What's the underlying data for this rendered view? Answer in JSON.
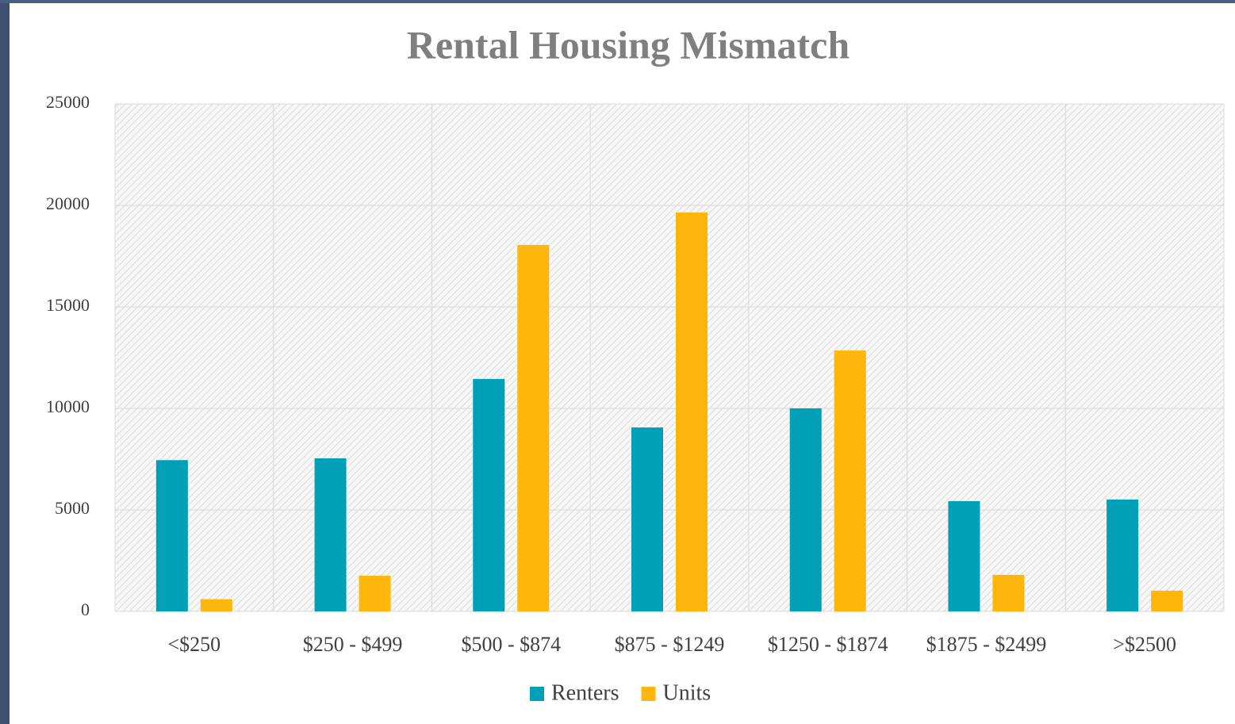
{
  "chart_data": {
    "type": "bar",
    "title": "Rental Housing Mismatch",
    "categories": [
      "<$250",
      "$250 - $499",
      "$500 - $874",
      "$875 - $1249",
      "$1250 - $1874",
      "$1875 - $2499",
      ">$2500"
    ],
    "series": [
      {
        "name": "Renters",
        "color": "#00a0b7",
        "values": [
          7450,
          7540,
          11450,
          9060,
          10000,
          5430,
          5510
        ]
      },
      {
        "name": "Units",
        "color": "#ffb60d",
        "values": [
          600,
          1760,
          18050,
          19650,
          12850,
          1800,
          1020
        ]
      }
    ],
    "ylim": [
      0,
      25000
    ],
    "yticks": [
      0,
      5000,
      10000,
      15000,
      20000,
      25000
    ],
    "grid": true,
    "legend": "bottom"
  }
}
